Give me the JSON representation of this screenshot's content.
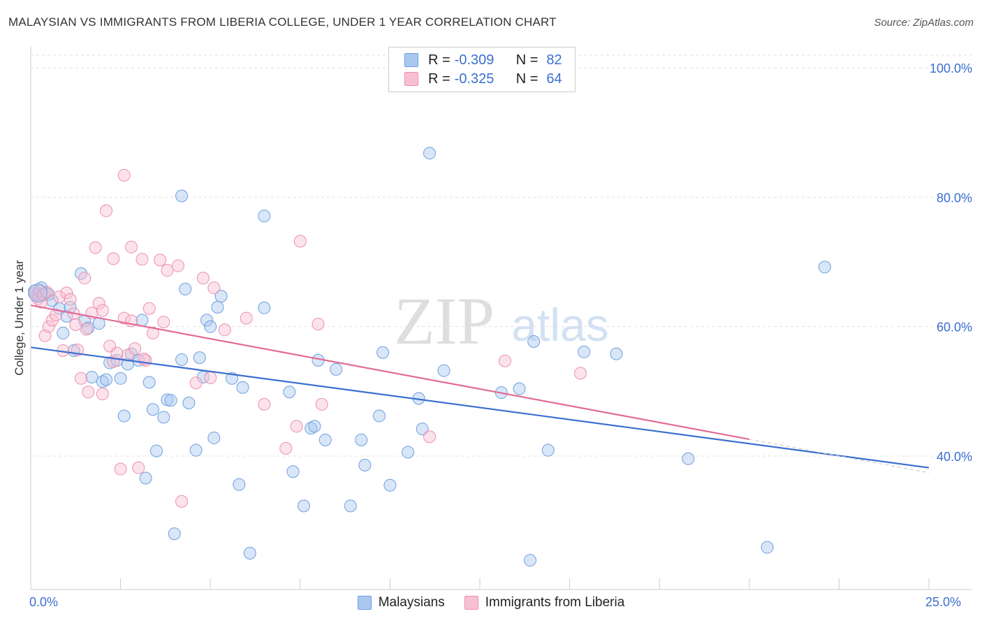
{
  "title": "MALAYSIAN VS IMMIGRANTS FROM LIBERIA COLLEGE, UNDER 1 YEAR CORRELATION CHART",
  "source": "Source: ZipAtlas.com",
  "watermark": {
    "zip": "ZIP",
    "atlas": "atlas"
  },
  "legend": {
    "rows": [
      {
        "r_label": "R =",
        "r_value": "-0.309",
        "n_label": "N =",
        "n_value": "82",
        "color": "#a9c8f0",
        "border": "#6f9fe0"
      },
      {
        "r_label": "R =",
        "r_value": "-0.325",
        "n_label": "N =",
        "n_value": "64",
        "color": "#f8c0d2",
        "border": "#ec8fb0"
      }
    ]
  },
  "bottom_legend": {
    "malaysians": "Malaysians",
    "liberia": "Immigrants from Liberia"
  },
  "chart_data": {
    "type": "scatter",
    "ylabel": "College, Under 1 year",
    "x_tick_labels": [
      "0.0%",
      "25.0%"
    ],
    "y_tick_labels": [
      "100.0%",
      "80.0%",
      "60.0%",
      "40.0%"
    ],
    "xlim": [
      0,
      25
    ],
    "ylim": [
      20,
      102
    ],
    "y_ticks": [
      100,
      80,
      60,
      40
    ],
    "grid": true,
    "colors": {
      "malaysians": "#3a6fd0",
      "liberia": "#e36a96",
      "blue_fill": "#a9c8f0",
      "pink_fill": "#f8c0d2"
    },
    "series": [
      {
        "name": "Malaysians",
        "trend": {
          "x": [
            0,
            25
          ],
          "y": [
            56.8,
            38.2
          ]
        },
        "points": [
          [
            0.1,
            65.5
          ],
          [
            0.2,
            65.0
          ],
          [
            0.3,
            66.0
          ],
          [
            0.4,
            65.2
          ],
          [
            0.5,
            65.0
          ],
          [
            0.6,
            64.0
          ],
          [
            0.8,
            62.8
          ],
          [
            0.9,
            59.0
          ],
          [
            1.0,
            61.6
          ],
          [
            1.1,
            63.0
          ],
          [
            1.2,
            56.3
          ],
          [
            1.4,
            68.2
          ],
          [
            1.5,
            60.9
          ],
          [
            1.6,
            59.8
          ],
          [
            1.7,
            52.2
          ],
          [
            1.9,
            60.5
          ],
          [
            2.0,
            51.5
          ],
          [
            2.1,
            51.8
          ],
          [
            2.2,
            54.4
          ],
          [
            2.4,
            54.8
          ],
          [
            2.5,
            52.0
          ],
          [
            2.6,
            46.2
          ],
          [
            2.7,
            54.2
          ],
          [
            2.8,
            55.8
          ],
          [
            3.0,
            54.8
          ],
          [
            3.1,
            61.0
          ],
          [
            3.2,
            36.6
          ],
          [
            3.3,
            51.4
          ],
          [
            3.4,
            47.2
          ],
          [
            3.5,
            40.8
          ],
          [
            3.7,
            46.0
          ],
          [
            3.8,
            48.7
          ],
          [
            3.9,
            48.6
          ],
          [
            4.0,
            28.0
          ],
          [
            4.2,
            54.9
          ],
          [
            4.2,
            80.2
          ],
          [
            4.3,
            65.8
          ],
          [
            4.4,
            48.2
          ],
          [
            4.6,
            40.9
          ],
          [
            4.7,
            55.2
          ],
          [
            4.8,
            52.2
          ],
          [
            4.9,
            61.0
          ],
          [
            5.0,
            60.0
          ],
          [
            5.1,
            42.8
          ],
          [
            5.2,
            63.0
          ],
          [
            5.3,
            64.7
          ],
          [
            5.6,
            52.0
          ],
          [
            5.8,
            35.6
          ],
          [
            5.9,
            50.6
          ],
          [
            6.1,
            25.0
          ],
          [
            6.5,
            62.9
          ],
          [
            6.5,
            77.1
          ],
          [
            7.2,
            49.9
          ],
          [
            7.3,
            37.6
          ],
          [
            7.6,
            32.3
          ],
          [
            7.8,
            44.3
          ],
          [
            7.9,
            44.6
          ],
          [
            8.0,
            54.8
          ],
          [
            8.2,
            42.5
          ],
          [
            8.5,
            53.4
          ],
          [
            8.9,
            32.3
          ],
          [
            9.2,
            42.5
          ],
          [
            9.3,
            38.6
          ],
          [
            9.7,
            46.2
          ],
          [
            9.8,
            56.0
          ],
          [
            10.0,
            35.5
          ],
          [
            10.5,
            40.6
          ],
          [
            10.8,
            48.9
          ],
          [
            10.9,
            44.2
          ],
          [
            11.1,
            86.8
          ],
          [
            11.5,
            53.2
          ],
          [
            13.1,
            49.8
          ],
          [
            13.6,
            50.4
          ],
          [
            13.9,
            23.9
          ],
          [
            14.0,
            57.7
          ],
          [
            14.4,
            40.9
          ],
          [
            15.4,
            56.1
          ],
          [
            16.3,
            55.8
          ],
          [
            18.3,
            39.6
          ],
          [
            20.5,
            25.9
          ],
          [
            22.1,
            69.2
          ],
          [
            0.15,
            64.8
          ]
        ]
      },
      {
        "name": "Immigrants from Liberia",
        "trend": {
          "x": [
            0,
            20
          ],
          "y": [
            63.3,
            42.6
          ]
        },
        "points": [
          [
            0.1,
            65.1
          ],
          [
            0.2,
            64.3
          ],
          [
            0.3,
            63.8
          ],
          [
            0.4,
            58.6
          ],
          [
            0.5,
            60.0
          ],
          [
            0.6,
            61.0
          ],
          [
            0.7,
            61.8
          ],
          [
            0.8,
            64.6
          ],
          [
            0.9,
            56.3
          ],
          [
            1.0,
            65.2
          ],
          [
            1.1,
            64.2
          ],
          [
            1.2,
            62.0
          ],
          [
            1.3,
            56.4
          ],
          [
            1.4,
            52.0
          ],
          [
            1.5,
            67.5
          ],
          [
            1.6,
            49.9
          ],
          [
            1.7,
            62.1
          ],
          [
            1.8,
            72.2
          ],
          [
            1.9,
            63.6
          ],
          [
            2.0,
            62.5
          ],
          [
            2.0,
            49.6
          ],
          [
            2.1,
            77.9
          ],
          [
            2.2,
            57.0
          ],
          [
            2.3,
            54.6
          ],
          [
            2.3,
            70.5
          ],
          [
            2.5,
            38.0
          ],
          [
            2.6,
            61.3
          ],
          [
            2.6,
            83.4
          ],
          [
            2.7,
            55.6
          ],
          [
            2.8,
            60.9
          ],
          [
            2.8,
            72.3
          ],
          [
            2.9,
            56.6
          ],
          [
            3.0,
            38.2
          ],
          [
            3.1,
            70.4
          ],
          [
            3.2,
            54.8
          ],
          [
            3.3,
            62.8
          ],
          [
            3.4,
            59.0
          ],
          [
            3.6,
            70.3
          ],
          [
            3.7,
            60.7
          ],
          [
            3.8,
            68.7
          ],
          [
            4.1,
            69.4
          ],
          [
            4.2,
            33.0
          ],
          [
            4.6,
            51.3
          ],
          [
            4.8,
            67.5
          ],
          [
            5.0,
            52.1
          ],
          [
            5.1,
            66.0
          ],
          [
            5.4,
            59.5
          ],
          [
            6.0,
            61.3
          ],
          [
            6.5,
            48.0
          ],
          [
            7.1,
            41.2
          ],
          [
            7.4,
            44.6
          ],
          [
            7.5,
            73.2
          ],
          [
            8.0,
            60.4
          ],
          [
            8.1,
            48.0
          ],
          [
            11.1,
            43.0
          ],
          [
            13.2,
            54.7
          ],
          [
            15.3,
            52.8
          ],
          [
            0.25,
            65.5
          ],
          [
            0.35,
            64.9
          ],
          [
            0.45,
            65.3
          ],
          [
            1.25,
            60.3
          ],
          [
            2.4,
            55.9
          ],
          [
            3.15,
            55.0
          ],
          [
            1.55,
            59.6
          ]
        ]
      }
    ]
  }
}
